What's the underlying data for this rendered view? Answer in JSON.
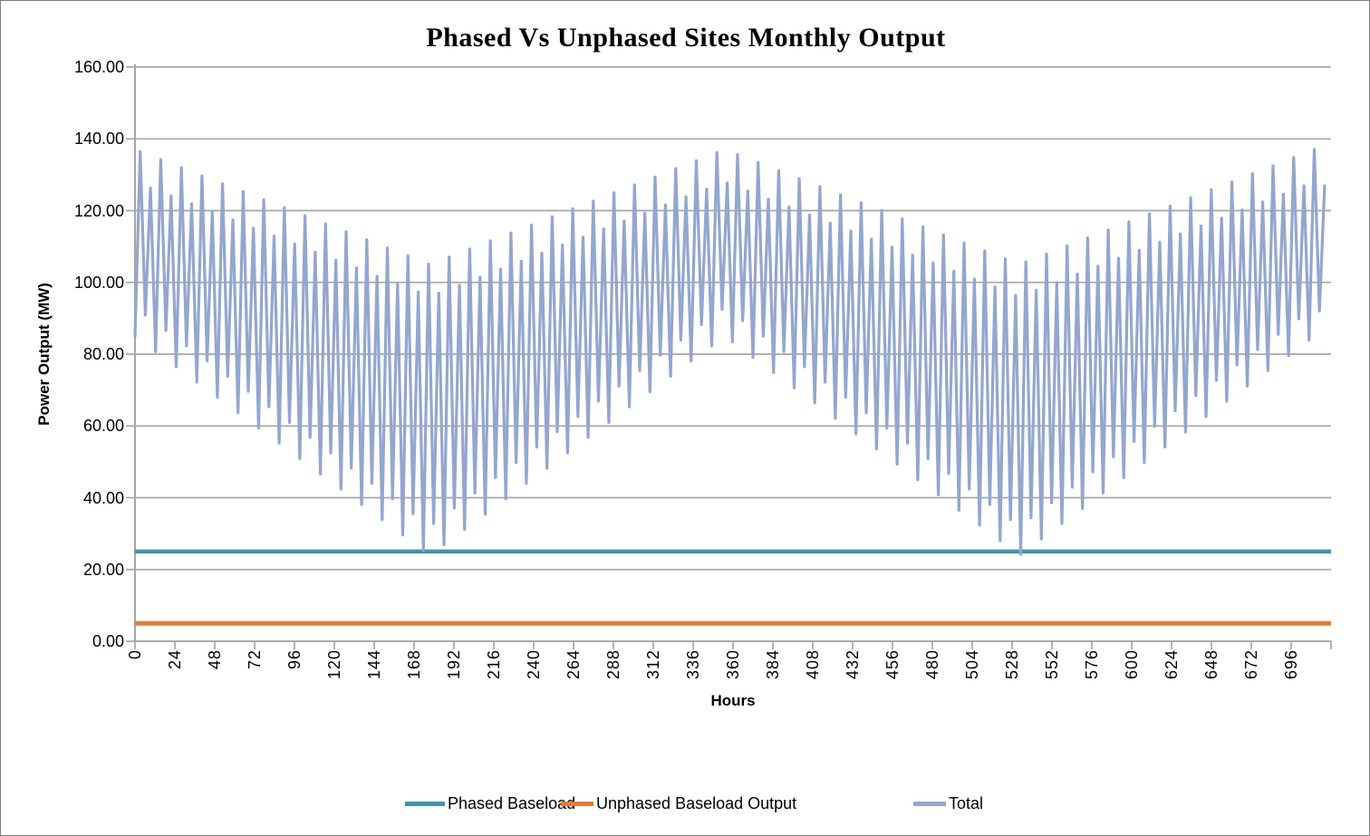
{
  "title": "Phased Vs Unphased Sites Monthly Output",
  "y_axis": {
    "title": "Power Output (MW)",
    "tick_labels": [
      "160.00",
      "140.00",
      "120.00",
      "100.00",
      "80.00",
      "60.00",
      "40.00",
      "20.00",
      "0.00"
    ]
  },
  "x_axis": {
    "title": "Hours",
    "tick_step": 24,
    "tick_labels": [
      "0",
      "24",
      "48",
      "72",
      "96",
      "120",
      "144",
      "168",
      "192",
      "216",
      "240",
      "264",
      "288",
      "312",
      "336",
      "360",
      "384",
      "408",
      "432",
      "456",
      "480",
      "504",
      "528",
      "552",
      "576",
      "600",
      "624",
      "648",
      "672",
      "696"
    ]
  },
  "legend": {
    "items": [
      {
        "label": "Phased Baseload",
        "color": "#4094A9"
      },
      {
        "label": "Unphased Baseload Output",
        "color": "#E07C3A"
      },
      {
        "label": "Total",
        "color": "#93A6CF"
      }
    ]
  },
  "colors": {
    "gridline": "#A6A6A6",
    "axis": "#A6A6A6",
    "phased": "#4094A9",
    "unphased": "#E07C3A",
    "total": "#93A6CF"
  },
  "chart_data": {
    "type": "line",
    "title": "Phased Vs Unphased Sites Monthly Output",
    "xlabel": "Hours",
    "ylabel": "Power Output (MW)",
    "xlim": [
      0,
      720
    ],
    "ylim": [
      0,
      160
    ],
    "grid": true,
    "legend_position": "bottom",
    "series": [
      {
        "name": "Phased Baseload",
        "kind": "constant",
        "value": 25,
        "color": "#4094A9"
      },
      {
        "name": "Unphased Baseload Output",
        "kind": "constant",
        "value": 5,
        "color": "#E07C3A"
      },
      {
        "name": "Total",
        "kind": "sampled",
        "color": "#93A6CF",
        "x_start": 0,
        "x_step": 3.1,
        "values": [
          85.0,
          136.4,
          90.9,
          126.3,
          80.7,
          134.2,
          86.6,
          124.1,
          76.5,
          132.0,
          82.3,
          121.9,
          72.2,
          129.7,
          78.1,
          119.6,
          68.0,
          127.5,
          73.8,
          117.4,
          63.7,
          125.3,
          69.6,
          115.1,
          59.4,
          123.0,
          65.3,
          112.9,
          55.2,
          120.8,
          61.0,
          110.7,
          50.9,
          118.6,
          56.8,
          108.4,
          46.6,
          116.3,
          52.5,
          106.2,
          42.4,
          114.1,
          48.3,
          104.0,
          38.1,
          111.9,
          44.0,
          101.7,
          33.9,
          109.6,
          39.7,
          99.5,
          29.6,
          107.4,
          35.5,
          97.3,
          25.3,
          105.1,
          32.8,
          97.0,
          26.9,
          107.1,
          37.1,
          99.2,
          31.2,
          109.3,
          41.3,
          101.4,
          35.4,
          111.6,
          45.6,
          103.7,
          39.7,
          113.8,
          49.8,
          105.9,
          44.0,
          116.0,
          54.1,
          108.2,
          48.2,
          118.3,
          58.4,
          110.4,
          52.5,
          120.5,
          62.6,
          112.6,
          56.8,
          122.7,
          66.9,
          114.9,
          61.0,
          125.0,
          71.1,
          117.1,
          65.3,
          127.2,
          75.4,
          119.3,
          69.5,
          129.4,
          79.7,
          121.6,
          73.8,
          131.7,
          83.9,
          123.8,
          78.1,
          133.9,
          88.2,
          126.0,
          82.3,
          136.2,
          92.5,
          127.7,
          83.4,
          135.6,
          89.3,
          125.5,
          79.1,
          133.4,
          85.0,
          123.2,
          74.9,
          131.1,
          80.7,
          121.0,
          70.6,
          128.9,
          76.5,
          118.8,
          66.4,
          126.7,
          72.2,
          116.5,
          62.1,
          124.4,
          68.0,
          114.3,
          57.8,
          122.2,
          63.7,
          112.1,
          53.6,
          120.0,
          59.4,
          109.8,
          49.3,
          117.7,
          55.2,
          107.6,
          45.0,
          115.5,
          50.9,
          105.4,
          40.8,
          113.2,
          46.7,
          103.1,
          36.5,
          111.0,
          42.4,
          100.9,
          32.3,
          108.8,
          38.1,
          98.7,
          28.0,
          106.5,
          33.9,
          96.4,
          24.2,
          105.7,
          34.4,
          97.8,
          28.5,
          107.9,
          38.6,
          100.0,
          32.8,
          110.2,
          42.9,
          102.3,
          37.0,
          112.4,
          47.2,
          104.5,
          41.3,
          114.6,
          51.4,
          106.7,
          45.6,
          116.9,
          55.7,
          109.0,
          49.8,
          119.1,
          59.9,
          111.2,
          54.1,
          121.3,
          64.2,
          113.5,
          58.3,
          123.6,
          68.5,
          115.7,
          62.6,
          125.8,
          72.7,
          117.9,
          66.9,
          128.0,
          77.0,
          120.2,
          71.1,
          130.3,
          81.3,
          122.4,
          75.4,
          132.5,
          85.5,
          124.6,
          79.6,
          134.8,
          89.8,
          126.9,
          83.9,
          137.0,
          92.0,
          126.9
        ]
      }
    ]
  }
}
